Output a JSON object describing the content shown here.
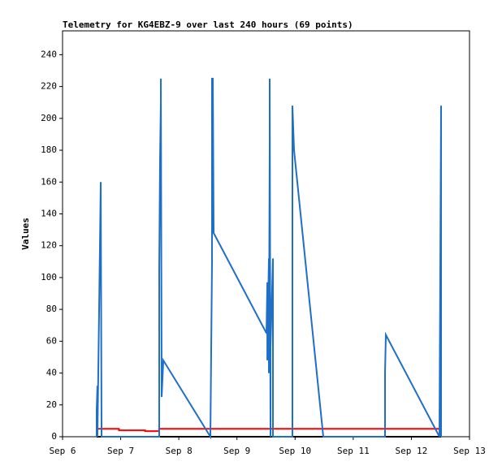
{
  "chart_data": {
    "type": "line",
    "title": "Telemetry for KG4EBZ-9 over last 240 hours (69 points)",
    "y_label": "Values",
    "xlim": [
      6,
      13
    ],
    "xticks": [
      {
        "value": 6,
        "label": "Sep 6"
      },
      {
        "value": 7,
        "label": "Sep 7"
      },
      {
        "value": 8,
        "label": "Sep 8"
      },
      {
        "value": 9,
        "label": "Sep 9"
      },
      {
        "value": 10,
        "label": "Sep 10"
      },
      {
        "value": 11,
        "label": "Sep 11"
      },
      {
        "value": 12,
        "label": "Sep 12"
      },
      {
        "value": 13,
        "label": "Sep 13"
      }
    ],
    "ylim": [
      0,
      255
    ],
    "yticks": [
      0,
      20,
      40,
      60,
      80,
      100,
      120,
      140,
      160,
      180,
      200,
      220,
      240
    ],
    "series": [
      {
        "color": "#000000",
        "x": [
          6.587,
          12.511
        ],
        "values": [
          0,
          0
        ]
      },
      {
        "color": "#ff0000",
        "x": [
          6.587,
          6.97,
          6.97,
          7.42,
          7.42,
          7.66,
          7.66,
          12.48,
          12.511
        ],
        "values": [
          5,
          5,
          4,
          4,
          3.5,
          3.5,
          5,
          5,
          6
        ]
      },
      {
        "color": "#1f6fc6",
        "x": [
          6.587,
          6.587,
          6.6,
          6.6,
          6.629,
          6.657,
          6.671,
          7.663,
          7.663,
          7.677,
          7.691,
          7.691,
          7.705,
          7.733,
          8.543,
          8.571,
          8.571,
          8.585,
          8.599,
          9.508,
          9.522,
          9.522,
          9.549,
          9.549,
          9.563,
          9.563,
          9.577,
          9.577,
          9.619,
          9.619,
          9.954,
          9.954,
          9.982,
          10.485,
          11.547,
          11.547,
          11.561,
          12.483,
          12.511,
          12.511
        ],
        "values": [
          0,
          17,
          32,
          0,
          80,
          160,
          0,
          0,
          105,
          175,
          210,
          225,
          25,
          48,
          0,
          110,
          225,
          225,
          128,
          65,
          97,
          48,
          112,
          40,
          185,
          225,
          0,
          56,
          112,
          0,
          0,
          208,
          180,
          0,
          0,
          40,
          64,
          0,
          208,
          0
        ]
      }
    ]
  }
}
